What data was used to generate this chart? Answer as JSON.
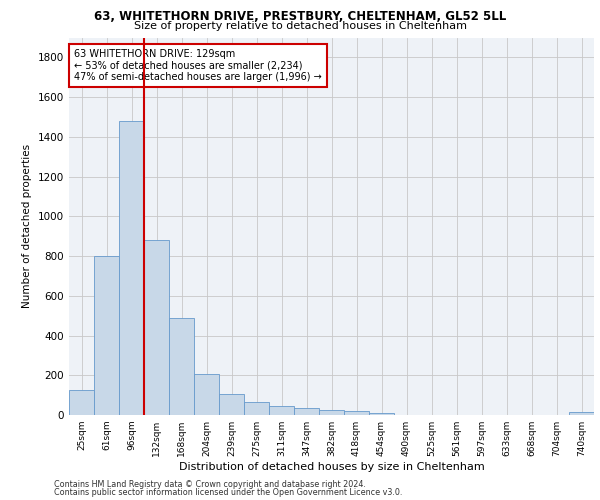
{
  "title_line1": "63, WHITETHORN DRIVE, PRESTBURY, CHELTENHAM, GL52 5LL",
  "title_line2": "Size of property relative to detached houses in Cheltenham",
  "xlabel": "Distribution of detached houses by size in Cheltenham",
  "ylabel": "Number of detached properties",
  "categories": [
    "25sqm",
    "61sqm",
    "96sqm",
    "132sqm",
    "168sqm",
    "204sqm",
    "239sqm",
    "275sqm",
    "311sqm",
    "347sqm",
    "382sqm",
    "418sqm",
    "454sqm",
    "490sqm",
    "525sqm",
    "561sqm",
    "597sqm",
    "633sqm",
    "668sqm",
    "704sqm",
    "740sqm"
  ],
  "values": [
    125,
    800,
    1480,
    880,
    490,
    205,
    105,
    65,
    45,
    35,
    25,
    20,
    10,
    0,
    0,
    0,
    0,
    0,
    0,
    0,
    15
  ],
  "bar_color": "#c8d8e8",
  "bar_edge_color": "#6699cc",
  "vline_color": "#cc0000",
  "annotation_text": "63 WHITETHORN DRIVE: 129sqm\n← 53% of detached houses are smaller (2,234)\n47% of semi-detached houses are larger (1,996) →",
  "annotation_box_color": "#cc0000",
  "annotation_box_fill": "#ffffff",
  "ylim": [
    0,
    1900
  ],
  "yticks": [
    0,
    200,
    400,
    600,
    800,
    1000,
    1200,
    1400,
    1600,
    1800
  ],
  "footer_line1": "Contains HM Land Registry data © Crown copyright and database right 2024.",
  "footer_line2": "Contains public sector information licensed under the Open Government Licence v3.0.",
  "background_color": "#eef2f7",
  "grid_color": "#c8c8c8"
}
